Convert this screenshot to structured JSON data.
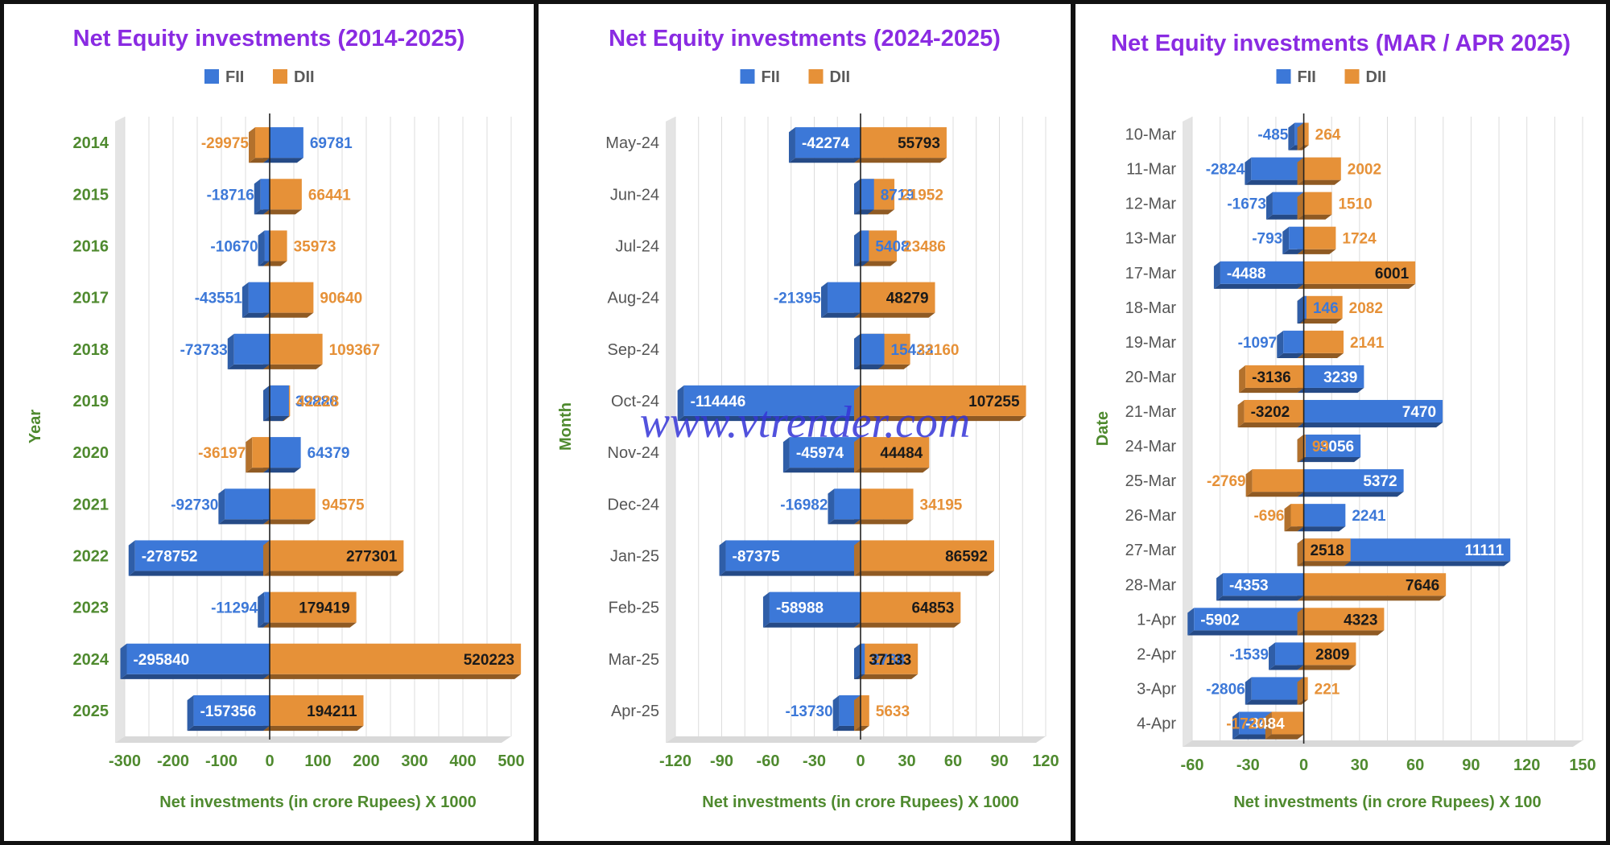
{
  "watermark": "www.vtrender.com",
  "colors": {
    "fii": "#3c78d8",
    "dii": "#e69138",
    "title": "#8a2be2",
    "axis": "#4f8a2f"
  },
  "chart_data": [
    {
      "type": "bar",
      "orientation": "horizontal",
      "title": "Net Equity investments (2014-2025)",
      "xlabel": "Net investments (in crore Rupees) X 1000",
      "ylabel": "Year",
      "legend": "top",
      "category_style": "green",
      "xlim": [
        -300,
        500
      ],
      "xticks": [
        -300,
        -200,
        -100,
        0,
        100,
        200,
        300,
        400,
        500
      ],
      "scale": 1000,
      "categories": [
        "2014",
        "2015",
        "2016",
        "2017",
        "2018",
        "2019",
        "2020",
        "2021",
        "2022",
        "2023",
        "2024",
        "2025"
      ],
      "series": [
        {
          "name": "FII",
          "values": [
            69781,
            -18716,
            -10670,
            -43551,
            -73733,
            39880,
            64379,
            -92730,
            -278752,
            -11294,
            -295840,
            -157356
          ]
        },
        {
          "name": "DII",
          "values": [
            -29975,
            66441,
            35973,
            90640,
            109367,
            42228,
            -36197,
            94575,
            277301,
            179419,
            520223,
            194211
          ]
        }
      ]
    },
    {
      "type": "bar",
      "orientation": "horizontal",
      "title": "Net Equity investments (2024-2025)",
      "xlabel": "Net investments (in crore Rupees) X 1000",
      "ylabel": "Month",
      "legend": "top",
      "category_style": "gray",
      "xlim": [
        -120,
        120
      ],
      "xticks": [
        -120,
        -90,
        -60,
        -30,
        0,
        30,
        60,
        90,
        120
      ],
      "scale": 1000,
      "categories": [
        "May-24",
        "Jun-24",
        "Jul-24",
        "Aug-24",
        "Sep-24",
        "Oct-24",
        "Nov-24",
        "Dec-24",
        "Jan-25",
        "Feb-25",
        "Mar-25",
        "Apr-25"
      ],
      "series": [
        {
          "name": "FII",
          "values": [
            -42274,
            8719,
            5408,
            -21395,
            15423,
            -114446,
            -45974,
            -16982,
            -87375,
            -58988,
            2738,
            -13730
          ]
        },
        {
          "name": "DII",
          "values": [
            55793,
            21952,
            23486,
            48279,
            32160,
            107255,
            44484,
            34195,
            86592,
            64853,
            37133,
            5633
          ]
        }
      ]
    },
    {
      "type": "bar",
      "orientation": "horizontal",
      "title": "Net Equity investments (MAR / APR 2025)",
      "xlabel": "Net investments (in crore Rupees) X 100",
      "ylabel": "Date",
      "legend": "top",
      "category_style": "gray",
      "xlim": [
        -60,
        150
      ],
      "xticks": [
        -60,
        -30,
        0,
        30,
        60,
        90,
        120,
        150
      ],
      "scale": 100,
      "categories": [
        "10-Mar",
        "11-Mar",
        "12-Mar",
        "13-Mar",
        "17-Mar",
        "18-Mar",
        "19-Mar",
        "20-Mar",
        "21-Mar",
        "24-Mar",
        "25-Mar",
        "26-Mar",
        "27-Mar",
        "28-Mar",
        "1-Apr",
        "2-Apr",
        "3-Apr",
        "4-Apr"
      ],
      "series": [
        {
          "name": "FII",
          "values": [
            -485,
            -2824,
            -1673,
            -793,
            -4488,
            146,
            -1097,
            3239,
            7470,
            3056,
            5372,
            2241,
            11111,
            -4353,
            -5902,
            -1539,
            -2806,
            -3484
          ]
        },
        {
          "name": "DII",
          "values": [
            264,
            2002,
            1510,
            1724,
            6001,
            2082,
            2141,
            -3136,
            -3202,
            99,
            -2769,
            -696,
            2518,
            7646,
            4323,
            2809,
            221,
            -1720
          ]
        }
      ]
    }
  ]
}
